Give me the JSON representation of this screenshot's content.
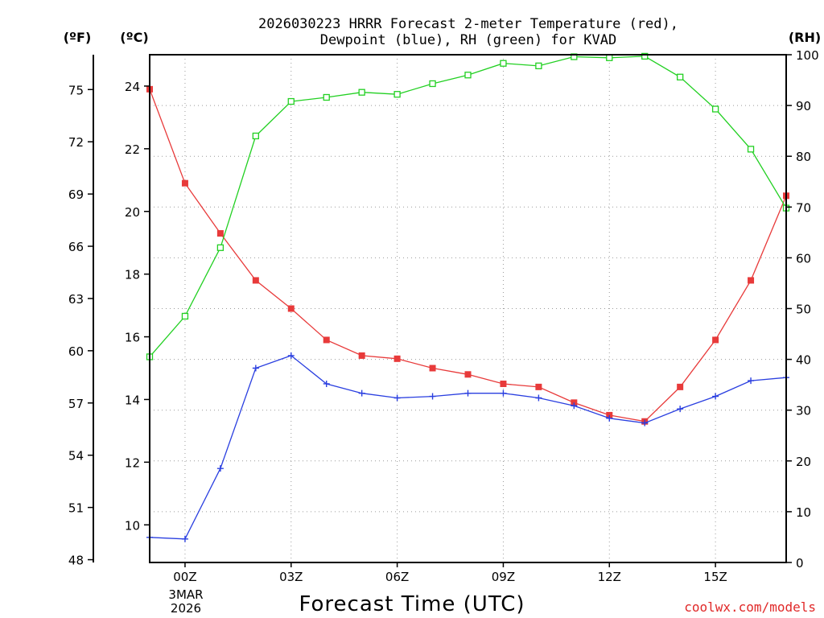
{
  "chart_data": {
    "type": "line",
    "title_line1": "2026030223 HRRR Forecast 2-meter Temperature (red),",
    "title_line2": "Dewpoint (blue), RH (green) for KVAD",
    "xlabel": "Forecast Time (UTC)",
    "date_label_line1": "3MAR",
    "date_label_line2": "2026",
    "unit_f": "(ºF)",
    "unit_c": "(ºC)",
    "unit_rh": "(RH)",
    "watermark": "coolwx.com/models",
    "x_hours": [
      -1,
      0,
      1,
      2,
      3,
      4,
      5,
      6,
      7,
      8,
      9,
      10,
      11,
      12,
      13,
      14,
      15,
      16,
      17
    ],
    "xlim": [
      -1,
      17
    ],
    "x_ticks": [
      {
        "hour": 0,
        "label": "00Z"
      },
      {
        "hour": 3,
        "label": "03Z"
      },
      {
        "hour": 6,
        "label": "06Z"
      },
      {
        "hour": 9,
        "label": "09Z"
      },
      {
        "hour": 12,
        "label": "12Z"
      },
      {
        "hour": 15,
        "label": "15Z"
      }
    ],
    "celsius_axis": {
      "min": 8.8,
      "max": 25.0,
      "ticks": [
        "10",
        "12",
        "14",
        "16",
        "18",
        "20",
        "22",
        "24"
      ]
    },
    "fahrenheit_axis": {
      "ticks": [
        "48",
        "51",
        "54",
        "57",
        "60",
        "63",
        "66",
        "69",
        "72",
        "75"
      ]
    },
    "rh_axis": {
      "min": 0,
      "max": 100,
      "ticks": [
        "0",
        "10",
        "20",
        "30",
        "40",
        "50",
        "60",
        "70",
        "80",
        "90",
        "100"
      ]
    },
    "series": [
      {
        "name": "Temperature",
        "unit": "C",
        "axis": "celsius",
        "color": "#e83a3a",
        "marker": "filled-square",
        "values": [
          23.9,
          20.9,
          19.3,
          17.8,
          16.9,
          15.9,
          15.4,
          15.3,
          15.0,
          14.8,
          14.5,
          14.4,
          13.9,
          13.5,
          13.3,
          14.4,
          15.9,
          17.8,
          20.5
        ]
      },
      {
        "name": "Dewpoint",
        "unit": "C",
        "axis": "celsius",
        "color": "#2a3fe0",
        "marker": "plus",
        "values": [
          9.6,
          9.55,
          11.8,
          15.0,
          15.4,
          14.5,
          14.2,
          14.05,
          14.1,
          14.2,
          14.2,
          14.05,
          13.8,
          13.4,
          13.25,
          13.7,
          14.1,
          14.6,
          14.7
        ]
      },
      {
        "name": "RH",
        "unit": "%",
        "axis": "rh",
        "color": "#22d022",
        "marker": "open-square",
        "values": [
          40.5,
          48.5,
          62.0,
          84.0,
          90.8,
          91.6,
          92.6,
          92.2,
          94.3,
          96.0,
          98.3,
          97.8,
          99.6,
          99.4,
          99.7,
          95.6,
          89.3,
          81.4,
          69.8
        ]
      }
    ]
  }
}
